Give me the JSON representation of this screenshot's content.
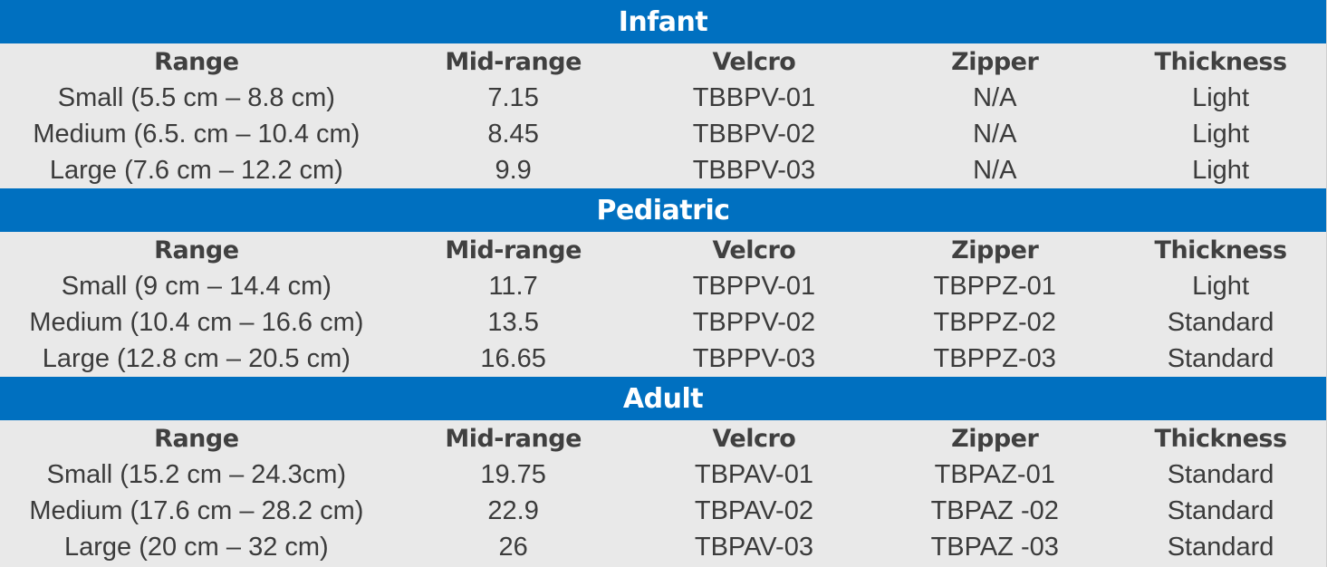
{
  "columns": [
    "Range",
    "Mid-range",
    "Velcro",
    "Zipper",
    "Thickness"
  ],
  "sections": [
    {
      "title": "Infant",
      "rows": [
        [
          "Small (5.5 cm – 8.8 cm)",
          "7.15",
          "TBBPV-01",
          "N/A",
          "Light"
        ],
        [
          "Medium (6.5. cm – 10.4 cm)",
          "8.45",
          "TBBPV-02",
          "N/A",
          "Light"
        ],
        [
          "Large (7.6 cm – 12.2 cm)",
          "9.9",
          "TBBPV-03",
          "N/A",
          "Light"
        ]
      ]
    },
    {
      "title": "Pediatric",
      "rows": [
        [
          "Small (9 cm – 14.4 cm)",
          "11.7",
          "TBPPV-01",
          "TBPPZ-01",
          "Light"
        ],
        [
          "Medium (10.4 cm – 16.6 cm)",
          "13.5",
          "TBPPV-02",
          "TBPPZ-02",
          "Standard"
        ],
        [
          "Large (12.8 cm – 20.5 cm)",
          "16.65",
          "TBPPV-03",
          "TBPPZ-03",
          "Standard"
        ]
      ]
    },
    {
      "title": "Adult",
      "rows": [
        [
          "Small (15.2 cm – 24.3cm)",
          "19.75",
          "TBPAV-01",
          "TBPAZ-01",
          "Standard"
        ],
        [
          "Medium (17.6 cm – 28.2 cm)",
          "22.9",
          "TBPAV-02",
          "TBPAZ -02",
          "Standard"
        ],
        [
          "Large (20 cm – 32 cm)",
          "26",
          "TBPAV-03",
          "TBPAZ -03",
          "Standard"
        ]
      ]
    }
  ],
  "colors": {
    "header_bg": "#0070c0",
    "header_text": "#ffffff",
    "body_bg": "#e9e9e9",
    "body_text": "#3b3b3b"
  }
}
